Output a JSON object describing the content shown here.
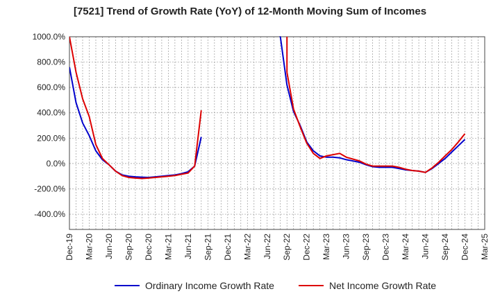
{
  "chart_data": {
    "type": "line",
    "title": "[7521]  Trend of Growth Rate (YoY) of 12-Month Moving Sum of Incomes",
    "xlabel": "",
    "ylabel": "",
    "ylim": [
      -520,
      1000
    ],
    "y_ticks": [
      -400,
      -200,
      0,
      200,
      400,
      600,
      800,
      1000
    ],
    "y_tick_labels": [
      "-400.0%",
      "-200.0%",
      "0.0%",
      "200.0%",
      "400.0%",
      "600.0%",
      "800.0%",
      "1000.0%"
    ],
    "x_tick_labels": [
      "Dec-19",
      "Mar-20",
      "Jun-20",
      "Sep-20",
      "Dec-20",
      "Mar-21",
      "Jun-21",
      "Sep-21",
      "Dec-21",
      "Mar-22",
      "Jun-22",
      "Sep-22",
      "Dec-22",
      "Mar-23",
      "Jun-23",
      "Sep-23",
      "Dec-23",
      "Mar-24",
      "Jun-24",
      "Sep-24",
      "Dec-24",
      "Mar-25"
    ],
    "grid": true,
    "legend": "bottom",
    "series": [
      {
        "name": "Ordinary Income Growth Rate",
        "color": "#0000cc",
        "values": [
          760,
          480,
          320,
          220,
          100,
          30,
          -10,
          -60,
          -90,
          -100,
          -105,
          -108,
          -110,
          -105,
          -100,
          -95,
          -90,
          -80,
          -65,
          -20,
          210,
          null,
          null,
          null,
          null,
          null,
          null,
          null,
          null,
          null,
          null,
          null,
          1000,
          620,
          410,
          300,
          170,
          100,
          60,
          50,
          50,
          45,
          30,
          20,
          10,
          -10,
          -25,
          -30,
          -30,
          -30,
          -40,
          -50,
          -55,
          -60,
          -70,
          -40,
          0,
          40,
          90,
          140,
          190
        ]
      },
      {
        "name": "Net Income Growth Rate",
        "color": "#dd0000",
        "values": [
          1000,
          720,
          510,
          370,
          150,
          40,
          -10,
          -60,
          -95,
          -110,
          -115,
          -118,
          -115,
          -110,
          -105,
          -100,
          -95,
          -85,
          -75,
          -20,
          420,
          null,
          null,
          null,
          null,
          null,
          null,
          null,
          null,
          null,
          null,
          null,
          null,
          720,
          430,
          290,
          160,
          80,
          40,
          60,
          70,
          80,
          50,
          35,
          20,
          -5,
          -20,
          -20,
          -20,
          -20,
          -30,
          -45,
          -55,
          -60,
          -70,
          -35,
          10,
          60,
          110,
          170,
          235
        ]
      }
    ]
  }
}
